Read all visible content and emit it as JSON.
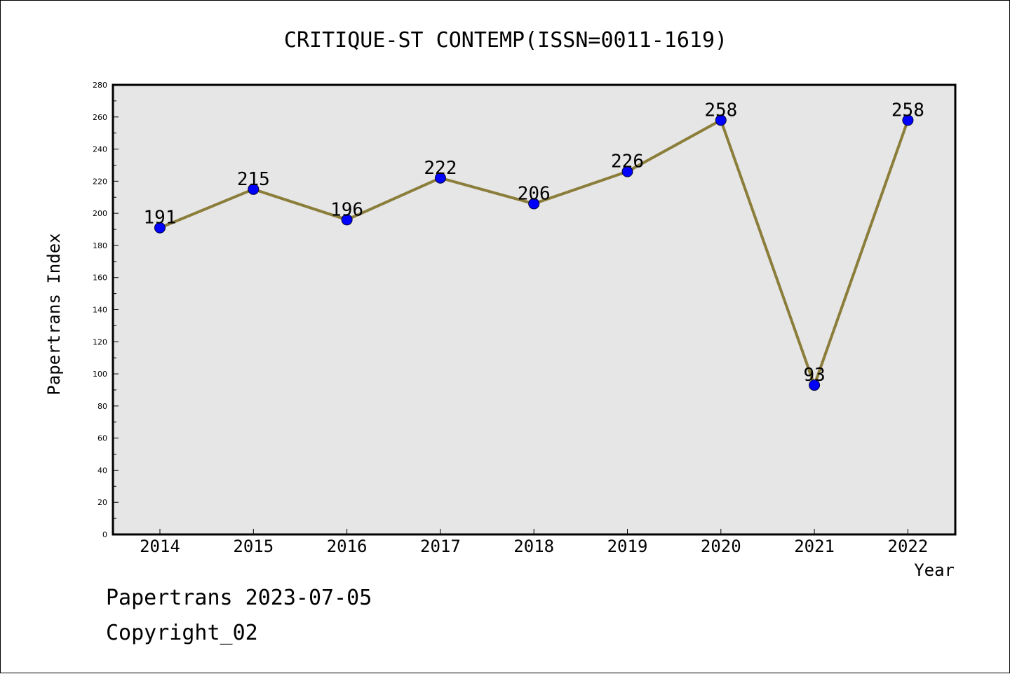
{
  "chart_data": {
    "type": "line",
    "title": "CRITIQUE-ST CONTEMP(ISSN=0011-1619)",
    "xlabel": "Year",
    "ylabel": "Papertrans Index",
    "categories": [
      "2014",
      "2015",
      "2016",
      "2017",
      "2018",
      "2019",
      "2020",
      "2021",
      "2022"
    ],
    "series": [
      {
        "values": [
          191,
          215,
          196,
          222,
          206,
          226,
          258,
          93,
          258
        ]
      }
    ],
    "data_labels": [
      "191",
      "215",
      "196",
      "222",
      "206",
      "226",
      "258",
      "93",
      "258"
    ],
    "ylim": [
      0,
      280
    ],
    "yticks": [
      "0",
      "20",
      "40",
      "60",
      "80",
      "100",
      "120",
      "140",
      "160",
      "180",
      "200",
      "220",
      "240",
      "260",
      "280"
    ],
    "grid": false,
    "legend": "none",
    "colors": {
      "line": "#8b7d3a",
      "marker": "#0000ff",
      "plot_background": "#e6e6e6"
    }
  },
  "footer": {
    "line1": "Papertrans 2023-07-05",
    "line2": "Copyright_02"
  }
}
